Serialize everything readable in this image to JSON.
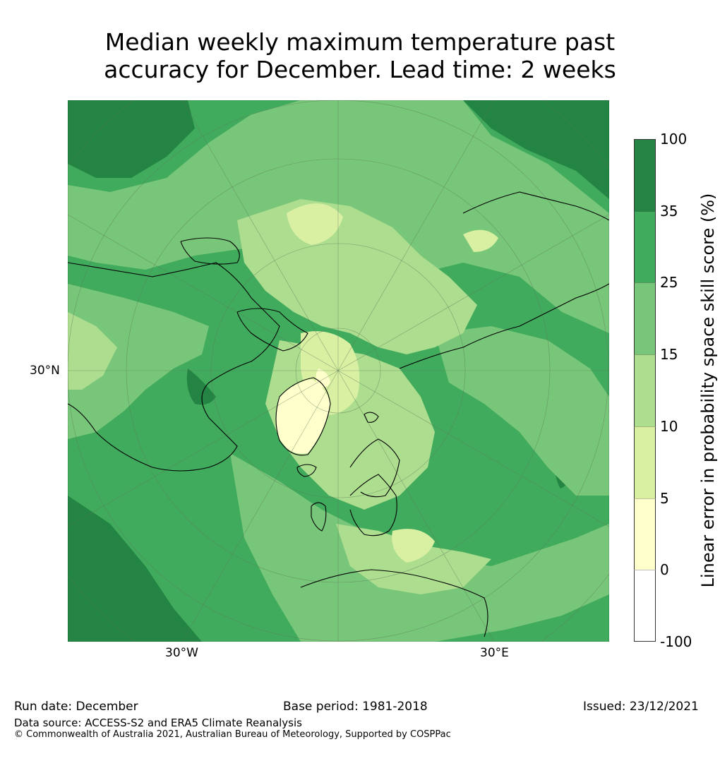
{
  "title": {
    "line1": "Median weekly maximum temperature past",
    "line2": "accuracy for December. Lead time: 2 weeks"
  },
  "map": {
    "lat_label": "30°N",
    "lon_label_west": "30°W",
    "lon_label_east": "30°E",
    "projection_description": "North polar stereographic"
  },
  "colorbar": {
    "title": "Linear error in probability space skill score (%)",
    "ticks": [
      "100",
      "35",
      "25",
      "15",
      "10",
      "5",
      "0",
      "-100"
    ],
    "bins": [
      {
        "from": "35",
        "to": "100",
        "color": "#238443"
      },
      {
        "from": "25",
        "to": "35",
        "color": "#41ab5d"
      },
      {
        "from": "15",
        "to": "25",
        "color": "#78c679"
      },
      {
        "from": "10",
        "to": "15",
        "color": "#addd8e"
      },
      {
        "from": "5",
        "to": "10",
        "color": "#d9f0a3"
      },
      {
        "from": "0",
        "to": "5",
        "color": "#ffffcc"
      },
      {
        "from": "-100",
        "to": "0",
        "color": "#ffffff"
      }
    ]
  },
  "footer": {
    "run_date": "Run date: December",
    "base_period": "Base period: 1981-2018",
    "issued": "Issued: 23/12/2021",
    "data_source": "Data source: ACCESS-S2 and ERA5 Climate Reanalysis",
    "copyright": "© Commonwealth of Australia 2021, Australian Bureau of Meteorology, Supported by COSPPac"
  }
}
